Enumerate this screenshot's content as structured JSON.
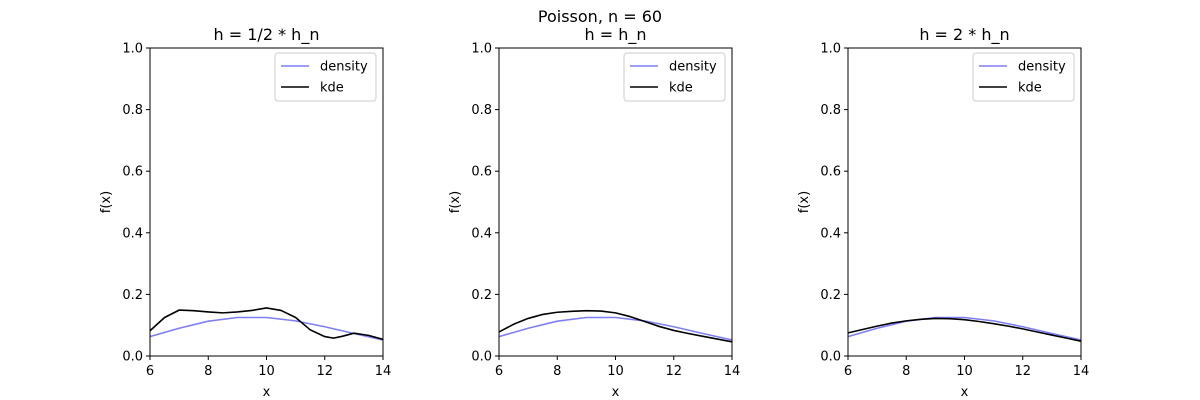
{
  "figure": {
    "title": "Poisson, n = 60"
  },
  "chart_data": [
    {
      "type": "line",
      "title": "h = 1/2 * h_n",
      "xlabel": "x",
      "ylabel": "f(x)",
      "xlim": [
        6,
        14
      ],
      "ylim": [
        0,
        1
      ],
      "xticks": [
        6,
        8,
        10,
        12,
        14
      ],
      "yticks": [
        0.0,
        0.2,
        0.4,
        0.6,
        0.8,
        1.0
      ],
      "legend": "top-right",
      "series": [
        {
          "name": "density",
          "color": "#7f7ff5",
          "x": [
            6,
            7,
            8,
            9,
            10,
            11,
            12,
            13,
            14
          ],
          "y": [
            0.063,
            0.09,
            0.113,
            0.125,
            0.125,
            0.114,
            0.095,
            0.073,
            0.052
          ]
        },
        {
          "name": "kde",
          "color": "#000000",
          "x": [
            6,
            6.5,
            7,
            7.5,
            8,
            8.5,
            9,
            9.5,
            10,
            10.5,
            11,
            11.5,
            12,
            12.3,
            12.6,
            13,
            13.5,
            14
          ],
          "y": [
            0.082,
            0.125,
            0.149,
            0.147,
            0.143,
            0.14,
            0.143,
            0.148,
            0.156,
            0.148,
            0.125,
            0.085,
            0.063,
            0.058,
            0.064,
            0.074,
            0.067,
            0.054
          ]
        }
      ]
    },
    {
      "type": "line",
      "title": "h = h_n",
      "xlabel": "x",
      "ylabel": "f(x)",
      "xlim": [
        6,
        14
      ],
      "ylim": [
        0,
        1
      ],
      "xticks": [
        6,
        8,
        10,
        12,
        14
      ],
      "yticks": [
        0.0,
        0.2,
        0.4,
        0.6,
        0.8,
        1.0
      ],
      "legend": "top-right",
      "series": [
        {
          "name": "density",
          "color": "#7f7ff5",
          "x": [
            6,
            7,
            8,
            9,
            10,
            11,
            12,
            13,
            14
          ],
          "y": [
            0.063,
            0.09,
            0.113,
            0.125,
            0.125,
            0.114,
            0.095,
            0.073,
            0.052
          ]
        },
        {
          "name": "kde",
          "color": "#000000",
          "x": [
            6,
            6.5,
            7,
            7.5,
            8,
            8.5,
            9,
            9.5,
            10,
            10.5,
            11,
            11.5,
            12,
            12.5,
            13,
            13.5,
            14
          ],
          "y": [
            0.078,
            0.103,
            0.122,
            0.135,
            0.142,
            0.145,
            0.147,
            0.146,
            0.14,
            0.128,
            0.112,
            0.096,
            0.083,
            0.073,
            0.064,
            0.055,
            0.046
          ]
        }
      ]
    },
    {
      "type": "line",
      "title": "h = 2 * h_n",
      "xlabel": "x",
      "ylabel": "f(x)",
      "xlim": [
        6,
        14
      ],
      "ylim": [
        0,
        1
      ],
      "xticks": [
        6,
        8,
        10,
        12,
        14
      ],
      "yticks": [
        0.0,
        0.2,
        0.4,
        0.6,
        0.8,
        1.0
      ],
      "legend": "top-right",
      "series": [
        {
          "name": "density",
          "color": "#7f7ff5",
          "x": [
            6,
            7,
            8,
            9,
            10,
            11,
            12,
            13,
            14
          ],
          "y": [
            0.063,
            0.09,
            0.113,
            0.125,
            0.125,
            0.114,
            0.095,
            0.073,
            0.052
          ]
        },
        {
          "name": "kde",
          "color": "#000000",
          "x": [
            6,
            6.5,
            7,
            7.5,
            8,
            8.5,
            9,
            9.5,
            10,
            10.5,
            11,
            11.5,
            12,
            12.5,
            13,
            13.5,
            14
          ],
          "y": [
            0.075,
            0.086,
            0.097,
            0.107,
            0.114,
            0.119,
            0.122,
            0.121,
            0.118,
            0.112,
            0.105,
            0.097,
            0.088,
            0.078,
            0.068,
            0.058,
            0.048
          ]
        }
      ]
    }
  ]
}
